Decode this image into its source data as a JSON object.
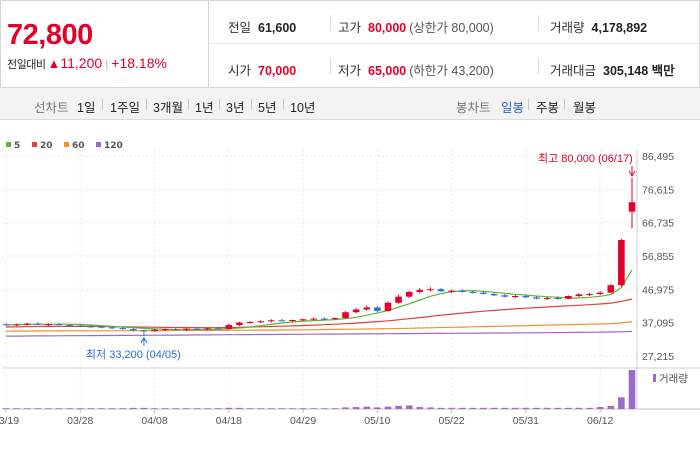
{
  "summary": {
    "price": "72,800",
    "change_label": "전일대비",
    "change_icon": "up-triangle",
    "change_arrow": "▲",
    "change_amount": "11,200",
    "change_separator": "|",
    "change_percent": "+18.18%",
    "stats": {
      "prev_close": {
        "label": "전일",
        "value": "61,600"
      },
      "high": {
        "label": "고가",
        "value": "80,000",
        "note": "(상한가 80,000)"
      },
      "volume": {
        "label": "거래량",
        "value": "4,178,892"
      },
      "open": {
        "label": "시가",
        "value": "70,000"
      },
      "low": {
        "label": "저가",
        "value": "65,000",
        "note": "(하한가 43,200)"
      },
      "trade_value": {
        "label": "거래대금",
        "value": "305,148 백만"
      }
    }
  },
  "period_tabs": {
    "title": "선차트",
    "items": [
      "1일",
      "1주일",
      "3개월",
      "1년",
      "3년",
      "5년",
      "10년"
    ]
  },
  "candle_tabs": {
    "title": "봉차트",
    "items": [
      "일봉",
      "주봉",
      "월봉"
    ],
    "active": "일봉"
  },
  "colors": {
    "up": "#e4002b",
    "down": "#2c6fd1",
    "ma5": "#5cb531",
    "ma20": "#e04040",
    "ma60": "#f0922b",
    "ma120": "#9a6bc8",
    "volume": "#9a6bc8",
    "high_annotation": "#e4002b",
    "low_annotation": "#2c6fd1"
  },
  "chart_data": {
    "type": "candlestick",
    "title": "일봉",
    "legend": [
      {
        "name": "5",
        "color": "#5cb531"
      },
      {
        "name": "20",
        "color": "#e04040"
      },
      {
        "name": "60",
        "color": "#f0922b"
      },
      {
        "name": "120",
        "color": "#9a6bc8"
      }
    ],
    "y_ticks": [
      "86,495",
      "76,615",
      "66,735",
      "56,855",
      "46,975",
      "37,095",
      "27,215"
    ],
    "y_tick_values": [
      86495,
      76615,
      66735,
      56855,
      46975,
      37095,
      27215
    ],
    "ylim": [
      27215,
      86495
    ],
    "x_tick_labels": [
      "03/19",
      "03/28",
      "04/08",
      "04/18",
      "04/29",
      "05/10",
      "05/22",
      "05/31",
      "06/12"
    ],
    "x_tick_index": [
      0,
      7,
      14,
      21,
      28,
      35,
      42,
      49,
      56
    ],
    "high_annotation": {
      "text": "최고 80,000 (06/17)",
      "index": 59,
      "value": 80000
    },
    "low_annotation": {
      "text": "최저 33,200 (04/05)",
      "index": 13,
      "value": 33200
    },
    "volume_label": "거래량",
    "candles": [
      [
        36600,
        37000,
        36200,
        36400
      ],
      [
        36400,
        36800,
        36000,
        36600
      ],
      [
        36600,
        37100,
        36300,
        36800
      ],
      [
        36800,
        37200,
        36400,
        36500
      ],
      [
        36500,
        36900,
        36100,
        36700
      ],
      [
        36700,
        37000,
        36300,
        36400
      ],
      [
        36400,
        36700,
        35900,
        36200
      ],
      [
        36200,
        36600,
        35800,
        36000
      ],
      [
        36000,
        36400,
        35600,
        35900
      ],
      [
        35900,
        36200,
        35400,
        35700
      ],
      [
        35700,
        36000,
        35200,
        35500
      ],
      [
        35500,
        35800,
        35000,
        35200
      ],
      [
        35200,
        35500,
        34600,
        34800
      ],
      [
        34800,
        35000,
        33200,
        34600
      ],
      [
        34600,
        35200,
        34400,
        35000
      ],
      [
        35000,
        35400,
        34700,
        35200
      ],
      [
        35200,
        35500,
        34800,
        35000
      ],
      [
        35000,
        35400,
        34600,
        35300
      ],
      [
        35300,
        35600,
        34900,
        35100
      ],
      [
        35100,
        35500,
        34800,
        35400
      ],
      [
        35400,
        35800,
        35100,
        35200
      ],
      [
        35200,
        36800,
        35000,
        36400
      ],
      [
        36400,
        37400,
        36100,
        37100
      ],
      [
        37100,
        37600,
        36800,
        37300
      ],
      [
        37300,
        37800,
        37000,
        37500
      ],
      [
        37500,
        38100,
        37200,
        37800
      ],
      [
        37800,
        38200,
        37500,
        37600
      ],
      [
        37600,
        38000,
        37300,
        37900
      ],
      [
        37900,
        38300,
        37600,
        38100
      ],
      [
        38100,
        38600,
        37800,
        38300
      ],
      [
        38300,
        38700,
        37900,
        38200
      ],
      [
        38200,
        38600,
        37900,
        38500
      ],
      [
        38500,
        40500,
        38300,
        40200
      ],
      [
        40200,
        41400,
        39800,
        41000
      ],
      [
        41000,
        42200,
        40600,
        41600
      ],
      [
        41600,
        42000,
        40200,
        40600
      ],
      [
        40600,
        43400,
        40400,
        43000
      ],
      [
        43000,
        45400,
        42700,
        44800
      ],
      [
        44800,
        46600,
        44400,
        46200
      ],
      [
        46200,
        47400,
        45700,
        46800
      ],
      [
        46800,
        47600,
        46300,
        47000
      ],
      [
        47000,
        47400,
        46200,
        46400
      ],
      [
        46400,
        46900,
        45800,
        46600
      ],
      [
        46600,
        47000,
        46000,
        46200
      ],
      [
        46200,
        46700,
        45700,
        46000
      ],
      [
        46000,
        46400,
        45500,
        45600
      ],
      [
        45600,
        46000,
        45000,
        45200
      ],
      [
        45200,
        45600,
        44600,
        44800
      ],
      [
        44800,
        45300,
        44300,
        45000
      ],
      [
        45000,
        45400,
        44400,
        44600
      ],
      [
        44600,
        45000,
        44000,
        44200
      ],
      [
        44200,
        44700,
        43800,
        44400
      ],
      [
        44400,
        44900,
        43900,
        44200
      ],
      [
        44200,
        45200,
        44000,
        45000
      ],
      [
        45000,
        45800,
        44700,
        45500
      ],
      [
        45500,
        46000,
        45000,
        45600
      ],
      [
        45600,
        46400,
        45300,
        46000
      ],
      [
        46000,
        48600,
        45800,
        48200
      ],
      [
        48200,
        62000,
        47800,
        61600
      ],
      [
        70000,
        80000,
        65000,
        72800
      ]
    ],
    "volume": [
      0.02,
      0.02,
      0.02,
      0.02,
      0.02,
      0.02,
      0.02,
      0.02,
      0.02,
      0.02,
      0.02,
      0.02,
      0.03,
      0.03,
      0.02,
      0.02,
      0.02,
      0.02,
      0.02,
      0.02,
      0.02,
      0.03,
      0.03,
      0.02,
      0.02,
      0.02,
      0.02,
      0.02,
      0.02,
      0.02,
      0.02,
      0.02,
      0.04,
      0.05,
      0.06,
      0.04,
      0.06,
      0.08,
      0.09,
      0.05,
      0.04,
      0.03,
      0.03,
      0.03,
      0.03,
      0.03,
      0.03,
      0.03,
      0.03,
      0.03,
      0.03,
      0.03,
      0.03,
      0.03,
      0.03,
      0.03,
      0.05,
      0.08,
      0.3,
      1.0
    ],
    "ma": {
      "5": [
        36400,
        36500,
        36550,
        36600,
        36600,
        36650,
        36650,
        36550,
        36400,
        36200,
        36000,
        35800,
        35600,
        35400,
        35250,
        35150,
        35050,
        35000,
        35050,
        35100,
        35150,
        35300,
        35500,
        35800,
        36200,
        36600,
        37000,
        37300,
        37550,
        37700,
        37850,
        38000,
        38300,
        38700,
        39300,
        40000,
        40700,
        41700,
        42700,
        43800,
        44900,
        45700,
        46300,
        46500,
        46600,
        46400,
        46100,
        45800,
        45500,
        45300,
        45000,
        44800,
        44600,
        44400,
        44400,
        44600,
        44900,
        45400,
        47500,
        52800
      ],
      "20": [
        35800,
        35850,
        35900,
        35950,
        36000,
        36000,
        36000,
        36000,
        35980,
        35950,
        35900,
        35860,
        35820,
        35780,
        35740,
        35700,
        35670,
        35640,
        35620,
        35600,
        35600,
        35650,
        35720,
        35800,
        35880,
        35960,
        36050,
        36150,
        36260,
        36380,
        36500,
        36630,
        36780,
        36960,
        37170,
        37400,
        37660,
        37950,
        38270,
        38610,
        38960,
        39300,
        39620,
        39930,
        40220,
        40490,
        40740,
        40970,
        41180,
        41380,
        41570,
        41750,
        41920,
        42080,
        42250,
        42430,
        42630,
        42900,
        43400,
        44100
      ],
      "60": [
        34600,
        34610,
        34620,
        34630,
        34640,
        34650,
        34660,
        34670,
        34680,
        34690,
        34700,
        34710,
        34720,
        34730,
        34740,
        34750,
        34760,
        34770,
        34780,
        34790,
        34800,
        34820,
        34840,
        34860,
        34880,
        34900,
        34930,
        34960,
        34990,
        35020,
        35050,
        35090,
        35130,
        35170,
        35220,
        35270,
        35320,
        35380,
        35440,
        35510,
        35580,
        35650,
        35720,
        35790,
        35860,
        35930,
        36000,
        36070,
        36140,
        36210,
        36280,
        36350,
        36420,
        36490,
        36560,
        36630,
        36710,
        36800,
        37000,
        37400
      ],
      "120": [
        33100,
        33120,
        33140,
        33160,
        33180,
        33200,
        33220,
        33240,
        33260,
        33280,
        33300,
        33320,
        33340,
        33360,
        33380,
        33400,
        33420,
        33440,
        33460,
        33480,
        33500,
        33520,
        33540,
        33560,
        33580,
        33600,
        33620,
        33640,
        33660,
        33680,
        33700,
        33720,
        33740,
        33760,
        33780,
        33800,
        33820,
        33840,
        33860,
        33880,
        33900,
        33920,
        33940,
        33960,
        33980,
        34000,
        34020,
        34040,
        34060,
        34080,
        34100,
        34130,
        34160,
        34190,
        34220,
        34250,
        34290,
        34330,
        34400,
        34500
      ]
    }
  }
}
